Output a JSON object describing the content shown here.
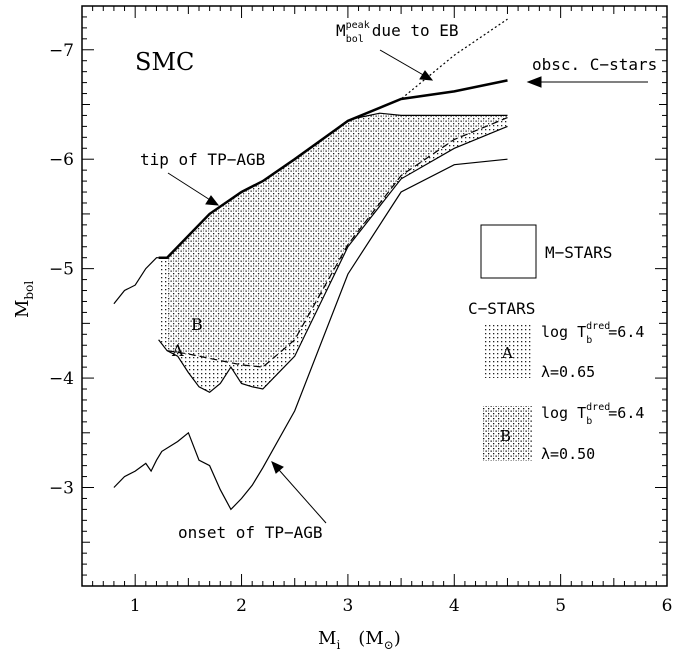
{
  "chart_data": {
    "type": "line",
    "panel_label": "SMC",
    "xlabel": "M",
    "xlabel_sub": "i",
    "xlabel_unit": "(M",
    "xlabel_unit_sub": "⊙",
    "xlabel_unit_close": ")",
    "ylabel": "M",
    "ylabel_sub": "bol",
    "xlim": [
      0.5,
      6.0
    ],
    "ylim": [
      -2.1,
      -7.4
    ],
    "xticks": [
      1,
      2,
      3,
      4,
      5,
      6
    ],
    "xtick_labels": [
      "1",
      "2",
      "3",
      "4",
      "5",
      "6"
    ],
    "yticks": [
      -3,
      -4,
      -5,
      -6,
      -7
    ],
    "ytick_labels": [
      "−3",
      "−4",
      "−5",
      "−6",
      "−7"
    ],
    "series": [
      {
        "name": "tip of TP-AGB",
        "style": "solid-thick",
        "x": [
          1.22,
          1.3,
          1.5,
          1.7,
          2.0,
          2.2,
          2.5,
          3.0,
          3.5,
          4.0,
          4.5
        ],
        "y": [
          -5.1,
          -5.1,
          -5.3,
          -5.5,
          -5.7,
          -5.8,
          -6.0,
          -6.35,
          -6.55,
          -6.62,
          -6.72
        ]
      },
      {
        "name": "",
        "style": "solid-thin",
        "x": [
          0.8,
          0.9,
          1.0,
          1.1,
          1.2,
          1.22
        ],
        "y": [
          -4.68,
          -4.8,
          -4.85,
          -5.0,
          -5.1,
          -5.1
        ]
      },
      {
        "name": "Mbol peak due to EB",
        "style": "dotted",
        "x": [
          3.0,
          3.5,
          4.0,
          4.5
        ],
        "y": [
          -6.35,
          -6.55,
          -6.95,
          -7.28
        ]
      },
      {
        "name": "onset of TP-AGB",
        "style": "solid-thin",
        "x": [
          0.8,
          0.9,
          1.0,
          1.1,
          1.15,
          1.2,
          1.25,
          1.4,
          1.5,
          1.6,
          1.7,
          1.8,
          1.9,
          2.0,
          2.1,
          2.2,
          2.5,
          3.0,
          3.5,
          4.0,
          4.5
        ],
        "y": [
          -3.0,
          -3.1,
          -3.15,
          -3.22,
          -3.15,
          -3.25,
          -3.33,
          -3.42,
          -3.5,
          -3.25,
          -3.2,
          -2.98,
          -2.8,
          -2.9,
          -3.02,
          -3.18,
          -3.7,
          -4.95,
          -5.7,
          -5.95,
          -6.0
        ]
      },
      {
        "name": "C-stars model A lower",
        "style": "solid-thin",
        "x": [
          1.22,
          1.3,
          1.4,
          1.5,
          1.6,
          1.7,
          1.8,
          1.9,
          2.0,
          2.1,
          2.2,
          2.5,
          3.0,
          3.5,
          4.0,
          4.5
        ],
        "y": [
          -4.35,
          -4.25,
          -4.2,
          -4.05,
          -3.92,
          -3.87,
          -3.95,
          -4.1,
          -3.95,
          -3.92,
          -3.9,
          -4.2,
          -5.2,
          -5.82,
          -6.1,
          -6.3
        ]
      },
      {
        "name": "C-stars model B lower",
        "style": "dashed",
        "x": [
          1.3,
          1.5,
          1.7,
          2.0,
          2.2,
          2.5,
          3.0,
          3.5,
          4.0,
          4.5
        ],
        "y": [
          -4.25,
          -4.22,
          -4.18,
          -4.12,
          -4.1,
          -4.35,
          -5.22,
          -5.85,
          -6.18,
          -6.38
        ]
      },
      {
        "name": "C-stars upper",
        "style": "solid-thin",
        "x": [
          3.0,
          3.1,
          3.3,
          3.5,
          3.8,
          4.0,
          4.5
        ],
        "y": [
          -6.35,
          -6.38,
          -6.42,
          -6.4,
          -6.4,
          -6.4,
          -6.4
        ]
      }
    ],
    "annotations": {
      "peak_prefix": "M",
      "peak_sup": "peak",
      "peak_sub": "bol",
      "peak_suffix": "due to EB",
      "obsc": "obsc. C−stars",
      "tip": "tip of TP−AGB",
      "onset": "onset of TP−AGB",
      "label_A": "A",
      "label_B": "B"
    },
    "legend": {
      "m_stars": "M−STARS",
      "c_stars": "C−STARS",
      "log_prefix": "log T",
      "log_sup": "dred",
      "log_sub": "b",
      "log_value": "=6.4",
      "A_label": "A",
      "A_lambda": "λ=0.65",
      "B_label": "B",
      "B_lambda": "λ=0.50"
    },
    "grid": false
  }
}
